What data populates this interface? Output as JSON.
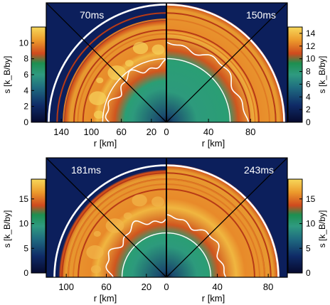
{
  "chart_data": [
    {
      "type": "heatmap",
      "left_panel": {
        "time_label": "70ms",
        "r_axis": {
          "label": "r [km]",
          "ticks": [
            140,
            100,
            60,
            20
          ],
          "range": [
            160,
            0
          ]
        },
        "colorbar": {
          "label": "s [k_B/by]",
          "ticks": [
            0,
            2,
            4,
            6,
            8,
            10
          ],
          "range": [
            0,
            12
          ]
        },
        "shock_radius_km": 135,
        "gain_radius_km": 60,
        "ring_radii_km": [
          123,
          118,
          111
        ]
      },
      "right_panel": {
        "time_label": "150ms",
        "r_axis": {
          "label": "r [km]",
          "ticks": [
            0,
            40,
            80
          ],
          "range": [
            0,
            115
          ]
        },
        "colorbar": {
          "label": "s [k_B/by]",
          "ticks": [
            0,
            2,
            4,
            6,
            8,
            10,
            12,
            14
          ],
          "range": [
            0,
            15
          ]
        },
        "shock_radius_km": 112,
        "gain_radius_km": 62,
        "ring_radii_km": [
          104,
          98
        ]
      }
    },
    {
      "type": "heatmap",
      "left_panel": {
        "time_label": "181ms",
        "r_axis": {
          "label": "r [km]",
          "ticks": [
            100,
            60,
            20
          ],
          "range": [
            120,
            0
          ]
        },
        "colorbar": {
          "label": "s [k_B/by]",
          "ticks": [
            0,
            5,
            10,
            15
          ],
          "range": [
            0,
            19
          ]
        },
        "shock_radius_km": 106,
        "gain_radius_km": 46,
        "ring_radii_km": [
          98,
          93,
          88
        ]
      },
      "right_panel": {
        "time_label": "243ms",
        "r_axis": {
          "label": "r [km]",
          "ticks": [
            0,
            40,
            80
          ],
          "range": [
            0,
            95
          ]
        },
        "colorbar": {
          "label": "s [k_B/by]",
          "ticks": [
            0,
            5,
            10,
            15
          ],
          "range": [
            0,
            19
          ]
        },
        "shock_radius_km": 88,
        "gain_radius_km": 36,
        "ring_radii_km": [
          82,
          77
        ]
      }
    }
  ]
}
